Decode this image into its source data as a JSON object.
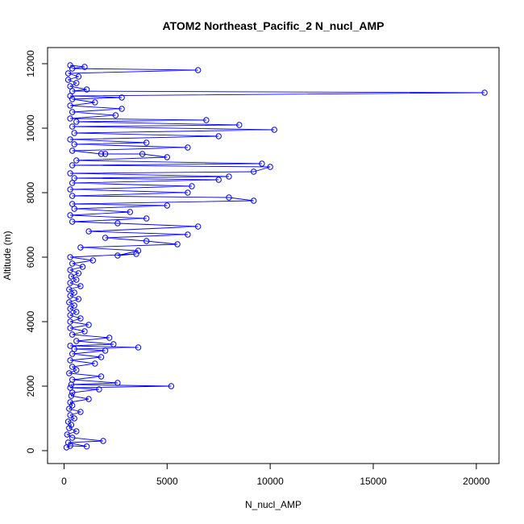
{
  "chart_data": {
    "type": "scatter",
    "title": "ATOM2 Northeast_Pacific_2 N_nucl_AMP",
    "xlabel": "N_nucl_AMP",
    "ylabel": "Altitude (m)",
    "xlim": [
      -800,
      21100
    ],
    "ylim": [
      -400,
      12500
    ],
    "xticks": [
      0,
      5000,
      10000,
      15000,
      20000
    ],
    "yticks": [
      0,
      2000,
      4000,
      6000,
      8000,
      10000,
      12000
    ],
    "grid": false,
    "legend": "none",
    "series_style": "points and connecting lines",
    "color": "#0000ff",
    "series": [
      {
        "points": [
          [
            120,
            100
          ],
          [
            300,
            150
          ],
          [
            1100,
            130
          ],
          [
            200,
            250
          ],
          [
            1900,
            300
          ],
          [
            400,
            400
          ],
          [
            150,
            500
          ],
          [
            600,
            600
          ],
          [
            250,
            700
          ],
          [
            350,
            800
          ],
          [
            200,
            900
          ],
          [
            500,
            1000
          ],
          [
            300,
            1100
          ],
          [
            800,
            1200
          ],
          [
            250,
            1300
          ],
          [
            400,
            1400
          ],
          [
            300,
            1500
          ],
          [
            1200,
            1600
          ],
          [
            350,
            1700
          ],
          [
            400,
            1800
          ],
          [
            1700,
            1900
          ],
          [
            300,
            1950
          ],
          [
            5200,
            2000
          ],
          [
            350,
            2050
          ],
          [
            2600,
            2100
          ],
          [
            400,
            2200
          ],
          [
            1800,
            2300
          ],
          [
            250,
            2400
          ],
          [
            600,
            2500
          ],
          [
            400,
            2600
          ],
          [
            1500,
            2700
          ],
          [
            300,
            2800
          ],
          [
            1800,
            2900
          ],
          [
            400,
            3000
          ],
          [
            2000,
            3100
          ],
          [
            500,
            3150
          ],
          [
            3600,
            3200
          ],
          [
            300,
            3250
          ],
          [
            2400,
            3300
          ],
          [
            600,
            3400
          ],
          [
            2200,
            3500
          ],
          [
            400,
            3600
          ],
          [
            1000,
            3700
          ],
          [
            300,
            3800
          ],
          [
            1200,
            3900
          ],
          [
            300,
            4000
          ],
          [
            800,
            4100
          ],
          [
            300,
            4200
          ],
          [
            600,
            4300
          ],
          [
            300,
            4400
          ],
          [
            500,
            4500
          ],
          [
            250,
            4600
          ],
          [
            700,
            4700
          ],
          [
            300,
            4800
          ],
          [
            500,
            4900
          ],
          [
            250,
            5000
          ],
          [
            800,
            5100
          ],
          [
            300,
            5200
          ],
          [
            600,
            5300
          ],
          [
            350,
            5400
          ],
          [
            700,
            5500
          ],
          [
            300,
            5600
          ],
          [
            900,
            5700
          ],
          [
            400,
            5800
          ],
          [
            1400,
            5900
          ],
          [
            300,
            6000
          ],
          [
            3500,
            6100
          ],
          [
            2600,
            6050
          ],
          [
            3600,
            6200
          ],
          [
            800,
            6300
          ],
          [
            5500,
            6400
          ],
          [
            4000,
            6500
          ],
          [
            2000,
            6600
          ],
          [
            6000,
            6700
          ],
          [
            1200,
            6800
          ],
          [
            6500,
            6950
          ],
          [
            2600,
            7050
          ],
          [
            400,
            7100
          ],
          [
            4000,
            7200
          ],
          [
            300,
            7300
          ],
          [
            3200,
            7400
          ],
          [
            500,
            7500
          ],
          [
            5000,
            7600
          ],
          [
            400,
            7650
          ],
          [
            9200,
            7750
          ],
          [
            8000,
            7850
          ],
          [
            400,
            7900
          ],
          [
            6000,
            8000
          ],
          [
            300,
            8100
          ],
          [
            6200,
            8200
          ],
          [
            400,
            8300
          ],
          [
            7500,
            8400
          ],
          [
            500,
            8450
          ],
          [
            8000,
            8500
          ],
          [
            300,
            8600
          ],
          [
            9200,
            8650
          ],
          [
            10000,
            8800
          ],
          [
            400,
            8850
          ],
          [
            9600,
            8900
          ],
          [
            600,
            9000
          ],
          [
            5000,
            9100
          ],
          [
            3800,
            9200
          ],
          [
            2000,
            9200
          ],
          [
            1800,
            9200
          ],
          [
            400,
            9300
          ],
          [
            6000,
            9400
          ],
          [
            500,
            9500
          ],
          [
            4000,
            9550
          ],
          [
            300,
            9650
          ],
          [
            7500,
            9750
          ],
          [
            500,
            9850
          ],
          [
            10200,
            9950
          ],
          [
            400,
            10050
          ],
          [
            8500,
            10100
          ],
          [
            600,
            10200
          ],
          [
            6900,
            10250
          ],
          [
            300,
            10300
          ],
          [
            2500,
            10400
          ],
          [
            400,
            10500
          ],
          [
            2800,
            10600
          ],
          [
            300,
            10700
          ],
          [
            1500,
            10800
          ],
          [
            400,
            10900
          ],
          [
            2800,
            10950
          ],
          [
            300,
            11000
          ],
          [
            20400,
            11100
          ],
          [
            400,
            11150
          ],
          [
            1100,
            11200
          ],
          [
            300,
            11300
          ],
          [
            600,
            11400
          ],
          [
            200,
            11500
          ],
          [
            700,
            11600
          ],
          [
            200,
            11700
          ],
          [
            6500,
            11800
          ],
          [
            400,
            11850
          ],
          [
            1000,
            11900
          ],
          [
            300,
            11950
          ]
        ]
      }
    ]
  }
}
